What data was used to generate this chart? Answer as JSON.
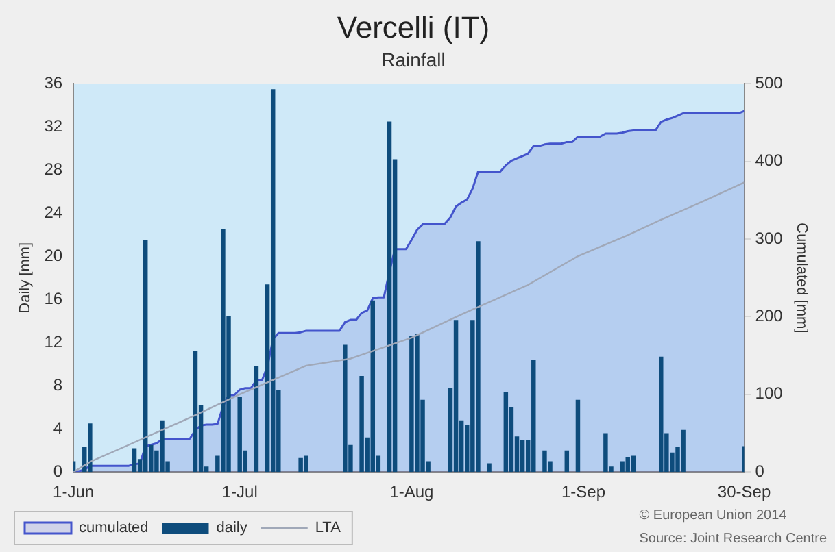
{
  "chart_data": {
    "type": "bar",
    "title": "Vercelli (IT)",
    "subtitle": "Rainfall",
    "ylabel": "Daily [mm]",
    "y2label": "Cumulated [mm]",
    "x": [
      "--06-01",
      "--06-02",
      "--06-03",
      "--06-04",
      "--06-05",
      "--06-06",
      "--06-07",
      "--06-08",
      "--06-09",
      "--06-10",
      "--06-11",
      "--06-12",
      "--06-13",
      "--06-14",
      "--06-15",
      "--06-16",
      "--06-17",
      "--06-18",
      "--06-19",
      "--06-20",
      "--06-21",
      "--06-22",
      "--06-23",
      "--06-24",
      "--06-25",
      "--06-26",
      "--06-27",
      "--06-28",
      "--06-29",
      "--06-30",
      "--07-01",
      "--07-02",
      "--07-03",
      "--07-04",
      "--07-05",
      "--07-06",
      "--07-07",
      "--07-08",
      "--07-09",
      "--07-10",
      "--07-11",
      "--07-12",
      "--07-13",
      "--07-14",
      "--07-15",
      "--07-16",
      "--07-17",
      "--07-18",
      "--07-19",
      "--07-20",
      "--07-21",
      "--07-22",
      "--07-23",
      "--07-24",
      "--07-25",
      "--07-26",
      "--07-27",
      "--07-28",
      "--07-29",
      "--07-30",
      "--07-31",
      "--08-01",
      "--08-02",
      "--08-03",
      "--08-04",
      "--08-05",
      "--08-06",
      "--08-07",
      "--08-08",
      "--08-09",
      "--08-10",
      "--08-11",
      "--08-12",
      "--08-13",
      "--08-14",
      "--08-15",
      "--08-16",
      "--08-17",
      "--08-18",
      "--08-19",
      "--08-20",
      "--08-21",
      "--08-22",
      "--08-23",
      "--08-24",
      "--08-25",
      "--08-26",
      "--08-27",
      "--08-28",
      "--08-29",
      "--08-30",
      "--08-31",
      "--09-01",
      "--09-02",
      "--09-03",
      "--09-04",
      "--09-05",
      "--09-06",
      "--09-07",
      "--09-08",
      "--09-09",
      "--09-10",
      "--09-11",
      "--09-12",
      "--09-13",
      "--09-14",
      "--09-15",
      "--09-16",
      "--09-17",
      "--09-18",
      "--09-19",
      "--09-20",
      "--09-21",
      "--09-22",
      "--09-23",
      "--09-24",
      "--09-25",
      "--09-26",
      "--09-27",
      "--09-28",
      "--09-29",
      "--09-30"
    ],
    "series": [
      {
        "name": "cumulated",
        "type": "area",
        "axis": "y2",
        "color": "#4455cc",
        "values": [
          1,
          1,
          3,
          8,
          8,
          8,
          8,
          8,
          8,
          8,
          8,
          10,
          11,
          33,
          35,
          37,
          42,
          43,
          43,
          43,
          43,
          43,
          54,
          60,
          61,
          61,
          62,
          85,
          99,
          99,
          106,
          108,
          108,
          118,
          118,
          136,
          171,
          179,
          179,
          179,
          179,
          180,
          182,
          182,
          182,
          182,
          182,
          182,
          182,
          193,
          196,
          196,
          205,
          208,
          224,
          225,
          225,
          258,
          287,
          287,
          287,
          299,
          312,
          319,
          320,
          320,
          320,
          320,
          328,
          342,
          347,
          351,
          365,
          387,
          387,
          387,
          387,
          387,
          395,
          401,
          404,
          407,
          410,
          420,
          420,
          422,
          423,
          423,
          423,
          425,
          425,
          432,
          432,
          432,
          432,
          432,
          436,
          436,
          436,
          437,
          439,
          440,
          440,
          440,
          440,
          440,
          451,
          454,
          456,
          459,
          462,
          462,
          462,
          462,
          462,
          462,
          462,
          462,
          462,
          462,
          462,
          465
        ]
      },
      {
        "name": "daily",
        "axis": "y",
        "color": "#0e4c7c",
        "values": [
          1,
          0,
          2.3,
          4.5,
          0,
          0,
          0,
          0,
          0,
          0,
          0,
          2.2,
          1.2,
          21.5,
          2.5,
          2,
          4.8,
          1,
          0,
          0,
          0,
          0,
          11.2,
          6.2,
          0.5,
          0,
          1.5,
          22.5,
          14.5,
          0,
          7,
          2,
          0,
          9.8,
          0,
          17.4,
          35.5,
          7.6,
          0,
          0,
          0,
          1.3,
          1.5,
          0,
          0,
          0,
          0,
          0,
          0,
          11.8,
          2.5,
          0,
          8.9,
          3.2,
          15.9,
          1.5,
          0,
          32.5,
          29,
          0,
          0,
          12.6,
          12.8,
          6.7,
          1,
          0,
          0,
          0,
          7.8,
          14.1,
          4.8,
          4.4,
          14.1,
          21.4,
          0,
          0.8,
          0,
          0,
          7.4,
          6,
          3.3,
          3,
          3,
          10.4,
          0,
          2,
          1,
          0,
          0,
          2,
          0,
          6.7,
          0,
          0,
          0,
          0,
          3.6,
          0.5,
          0,
          1,
          1.4,
          1.5,
          0,
          0,
          0,
          0,
          10.7,
          3.6,
          1.8,
          2.3,
          3.9,
          0,
          0,
          0,
          0,
          0,
          0,
          0,
          0,
          0,
          0,
          2.4
        ]
      },
      {
        "name": "LTA",
        "type": "line",
        "axis": "y2",
        "color": "#a0a8b8",
        "x": [
          "--06-01",
          "--06-04",
          "--06-11",
          "--06-22",
          "--07-01",
          "--07-13",
          "--07-21",
          "--08-01",
          "--08-10",
          "--08-22",
          "--08-31",
          "--09-09",
          "--09-15",
          "--09-23",
          "--09-30"
        ],
        "values": [
          0,
          13,
          35,
          70,
          100,
          137,
          146,
          173,
          203,
          241,
          278,
          305,
          325,
          350,
          373
        ]
      }
    ],
    "xlim": [
      "--06-01",
      "--09-30"
    ],
    "xticks": [
      {
        "value": "--06-01",
        "label": "1-Jun"
      },
      {
        "value": "--07-01",
        "label": "1-Jul"
      },
      {
        "value": "--08-01",
        "label": "1-Aug"
      },
      {
        "value": "--09-01",
        "label": "1-Sep"
      },
      {
        "value": "--09-30",
        "label": "30-Sep"
      }
    ],
    "ylim": [
      0,
      36
    ],
    "yticks": [
      0,
      4,
      8,
      12,
      16,
      20,
      24,
      28,
      32,
      36
    ],
    "y2lim": [
      0,
      500
    ],
    "y2ticks": [
      0,
      100,
      200,
      300,
      400,
      500
    ],
    "grid": false,
    "legend": "bottom left",
    "marker": "none",
    "annotations": [
      "© European Union 2014",
      "Source: Joint Research Centre"
    ]
  }
}
